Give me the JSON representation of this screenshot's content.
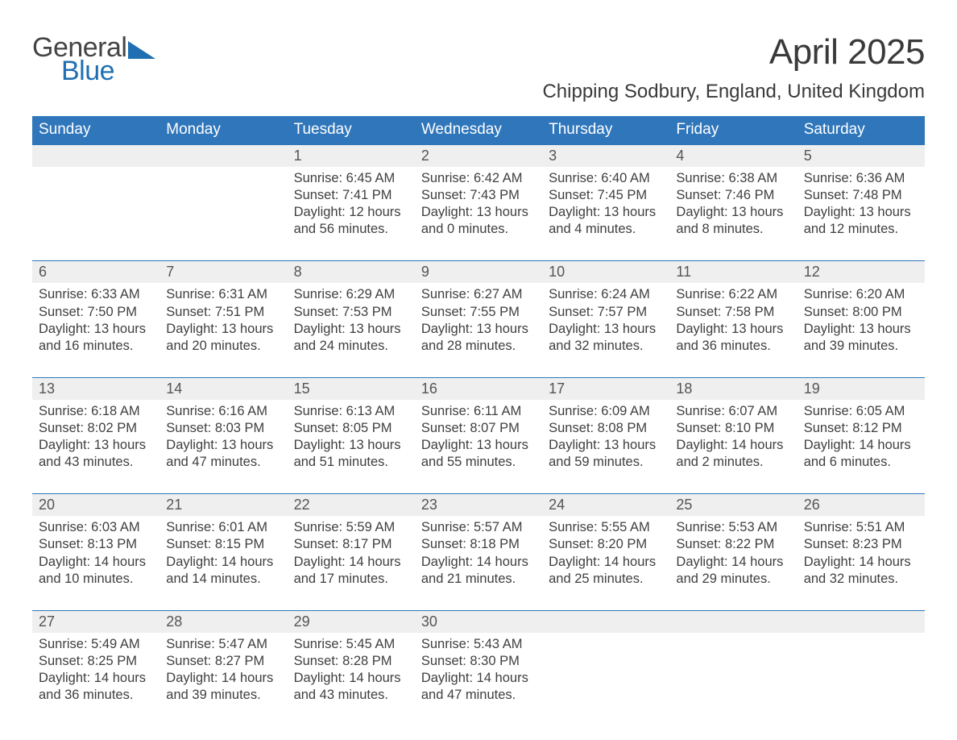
{
  "logo": {
    "word1": "General",
    "word2": "Blue",
    "triangle_color": "#1f6fb2",
    "text_color_general": "#444444",
    "text_color_blue": "#1f6fb2"
  },
  "title": "April 2025",
  "location": "Chipping Sodbury, England, United Kingdom",
  "colors": {
    "header_bg": "#2f76bb",
    "header_text": "#ffffff",
    "daynum_bg": "#efefef",
    "row_border": "#2f76bb",
    "body_text": "#3f3f3f"
  },
  "weekdays": [
    "Sunday",
    "Monday",
    "Tuesday",
    "Wednesday",
    "Thursday",
    "Friday",
    "Saturday"
  ],
  "weeks": [
    [
      {
        "day": "",
        "sunrise": "",
        "sunset": "",
        "daylight": ""
      },
      {
        "day": "",
        "sunrise": "",
        "sunset": "",
        "daylight": ""
      },
      {
        "day": "1",
        "sunrise": "Sunrise: 6:45 AM",
        "sunset": "Sunset: 7:41 PM",
        "daylight": "Daylight: 12 hours and 56 minutes."
      },
      {
        "day": "2",
        "sunrise": "Sunrise: 6:42 AM",
        "sunset": "Sunset: 7:43 PM",
        "daylight": "Daylight: 13 hours and 0 minutes."
      },
      {
        "day": "3",
        "sunrise": "Sunrise: 6:40 AM",
        "sunset": "Sunset: 7:45 PM",
        "daylight": "Daylight: 13 hours and 4 minutes."
      },
      {
        "day": "4",
        "sunrise": "Sunrise: 6:38 AM",
        "sunset": "Sunset: 7:46 PM",
        "daylight": "Daylight: 13 hours and 8 minutes."
      },
      {
        "day": "5",
        "sunrise": "Sunrise: 6:36 AM",
        "sunset": "Sunset: 7:48 PM",
        "daylight": "Daylight: 13 hours and 12 minutes."
      }
    ],
    [
      {
        "day": "6",
        "sunrise": "Sunrise: 6:33 AM",
        "sunset": "Sunset: 7:50 PM",
        "daylight": "Daylight: 13 hours and 16 minutes."
      },
      {
        "day": "7",
        "sunrise": "Sunrise: 6:31 AM",
        "sunset": "Sunset: 7:51 PM",
        "daylight": "Daylight: 13 hours and 20 minutes."
      },
      {
        "day": "8",
        "sunrise": "Sunrise: 6:29 AM",
        "sunset": "Sunset: 7:53 PM",
        "daylight": "Daylight: 13 hours and 24 minutes."
      },
      {
        "day": "9",
        "sunrise": "Sunrise: 6:27 AM",
        "sunset": "Sunset: 7:55 PM",
        "daylight": "Daylight: 13 hours and 28 minutes."
      },
      {
        "day": "10",
        "sunrise": "Sunrise: 6:24 AM",
        "sunset": "Sunset: 7:57 PM",
        "daylight": "Daylight: 13 hours and 32 minutes."
      },
      {
        "day": "11",
        "sunrise": "Sunrise: 6:22 AM",
        "sunset": "Sunset: 7:58 PM",
        "daylight": "Daylight: 13 hours and 36 minutes."
      },
      {
        "day": "12",
        "sunrise": "Sunrise: 6:20 AM",
        "sunset": "Sunset: 8:00 PM",
        "daylight": "Daylight: 13 hours and 39 minutes."
      }
    ],
    [
      {
        "day": "13",
        "sunrise": "Sunrise: 6:18 AM",
        "sunset": "Sunset: 8:02 PM",
        "daylight": "Daylight: 13 hours and 43 minutes."
      },
      {
        "day": "14",
        "sunrise": "Sunrise: 6:16 AM",
        "sunset": "Sunset: 8:03 PM",
        "daylight": "Daylight: 13 hours and 47 minutes."
      },
      {
        "day": "15",
        "sunrise": "Sunrise: 6:13 AM",
        "sunset": "Sunset: 8:05 PM",
        "daylight": "Daylight: 13 hours and 51 minutes."
      },
      {
        "day": "16",
        "sunrise": "Sunrise: 6:11 AM",
        "sunset": "Sunset: 8:07 PM",
        "daylight": "Daylight: 13 hours and 55 minutes."
      },
      {
        "day": "17",
        "sunrise": "Sunrise: 6:09 AM",
        "sunset": "Sunset: 8:08 PM",
        "daylight": "Daylight: 13 hours and 59 minutes."
      },
      {
        "day": "18",
        "sunrise": "Sunrise: 6:07 AM",
        "sunset": "Sunset: 8:10 PM",
        "daylight": "Daylight: 14 hours and 2 minutes."
      },
      {
        "day": "19",
        "sunrise": "Sunrise: 6:05 AM",
        "sunset": "Sunset: 8:12 PM",
        "daylight": "Daylight: 14 hours and 6 minutes."
      }
    ],
    [
      {
        "day": "20",
        "sunrise": "Sunrise: 6:03 AM",
        "sunset": "Sunset: 8:13 PM",
        "daylight": "Daylight: 14 hours and 10 minutes."
      },
      {
        "day": "21",
        "sunrise": "Sunrise: 6:01 AM",
        "sunset": "Sunset: 8:15 PM",
        "daylight": "Daylight: 14 hours and 14 minutes."
      },
      {
        "day": "22",
        "sunrise": "Sunrise: 5:59 AM",
        "sunset": "Sunset: 8:17 PM",
        "daylight": "Daylight: 14 hours and 17 minutes."
      },
      {
        "day": "23",
        "sunrise": "Sunrise: 5:57 AM",
        "sunset": "Sunset: 8:18 PM",
        "daylight": "Daylight: 14 hours and 21 minutes."
      },
      {
        "day": "24",
        "sunrise": "Sunrise: 5:55 AM",
        "sunset": "Sunset: 8:20 PM",
        "daylight": "Daylight: 14 hours and 25 minutes."
      },
      {
        "day": "25",
        "sunrise": "Sunrise: 5:53 AM",
        "sunset": "Sunset: 8:22 PM",
        "daylight": "Daylight: 14 hours and 29 minutes."
      },
      {
        "day": "26",
        "sunrise": "Sunrise: 5:51 AM",
        "sunset": "Sunset: 8:23 PM",
        "daylight": "Daylight: 14 hours and 32 minutes."
      }
    ],
    [
      {
        "day": "27",
        "sunrise": "Sunrise: 5:49 AM",
        "sunset": "Sunset: 8:25 PM",
        "daylight": "Daylight: 14 hours and 36 minutes."
      },
      {
        "day": "28",
        "sunrise": "Sunrise: 5:47 AM",
        "sunset": "Sunset: 8:27 PM",
        "daylight": "Daylight: 14 hours and 39 minutes."
      },
      {
        "day": "29",
        "sunrise": "Sunrise: 5:45 AM",
        "sunset": "Sunset: 8:28 PM",
        "daylight": "Daylight: 14 hours and 43 minutes."
      },
      {
        "day": "30",
        "sunrise": "Sunrise: 5:43 AM",
        "sunset": "Sunset: 8:30 PM",
        "daylight": "Daylight: 14 hours and 47 minutes."
      },
      {
        "day": "",
        "sunrise": "",
        "sunset": "",
        "daylight": ""
      },
      {
        "day": "",
        "sunrise": "",
        "sunset": "",
        "daylight": ""
      },
      {
        "day": "",
        "sunrise": "",
        "sunset": "",
        "daylight": ""
      }
    ]
  ]
}
